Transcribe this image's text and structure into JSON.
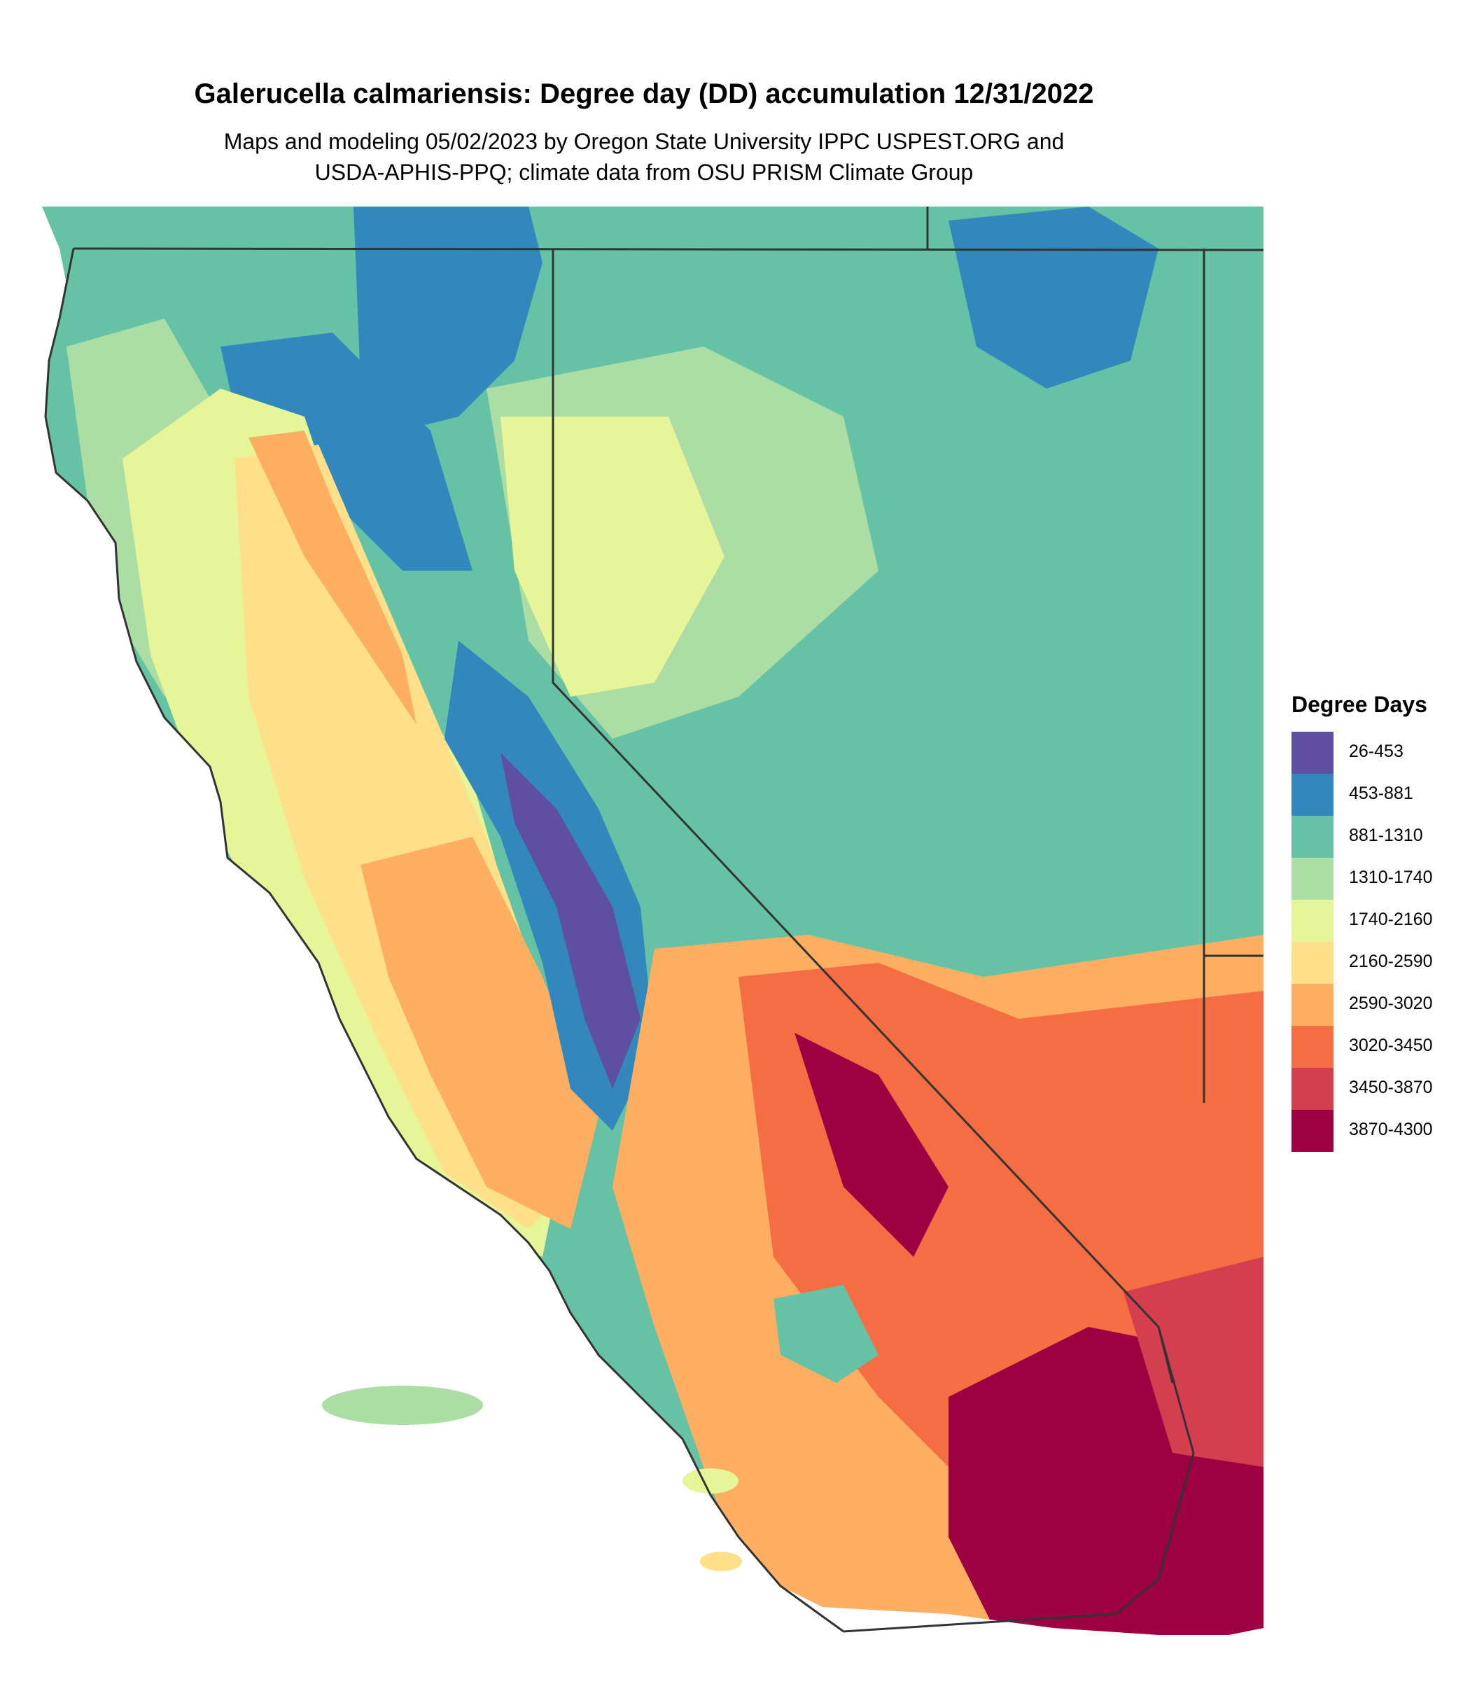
{
  "title": "Galerucella calmariensis: Degree day (DD) accumulation 12/31/2022",
  "subtitle_line1": "Maps and modeling 05/02/2023 by Oregon State University IPPC USPEST.ORG and",
  "subtitle_line2": "USDA-APHIS-PPQ; climate data from OSU PRISM Climate Group",
  "legend": {
    "title": "Degree Days",
    "items": [
      {
        "label": "26-453",
        "color": "#5e4fa2"
      },
      {
        "label": "453-881",
        "color": "#3288bd"
      },
      {
        "label": "881-1310",
        "color": "#66c2a5"
      },
      {
        "label": "1310-1740",
        "color": "#abdda4"
      },
      {
        "label": "1740-2160",
        "color": "#e6f598"
      },
      {
        "label": "2160-2590",
        "color": "#fee08b"
      },
      {
        "label": "2590-3020",
        "color": "#fdae61"
      },
      {
        "label": "3020-3450",
        "color": "#f46d43"
      },
      {
        "label": "3450-3870",
        "color": "#d53e4f"
      },
      {
        "label": "3870-4300",
        "color": "#9e0142"
      }
    ]
  },
  "map": {
    "region": "California and Nevada",
    "border_color": "#333333"
  }
}
